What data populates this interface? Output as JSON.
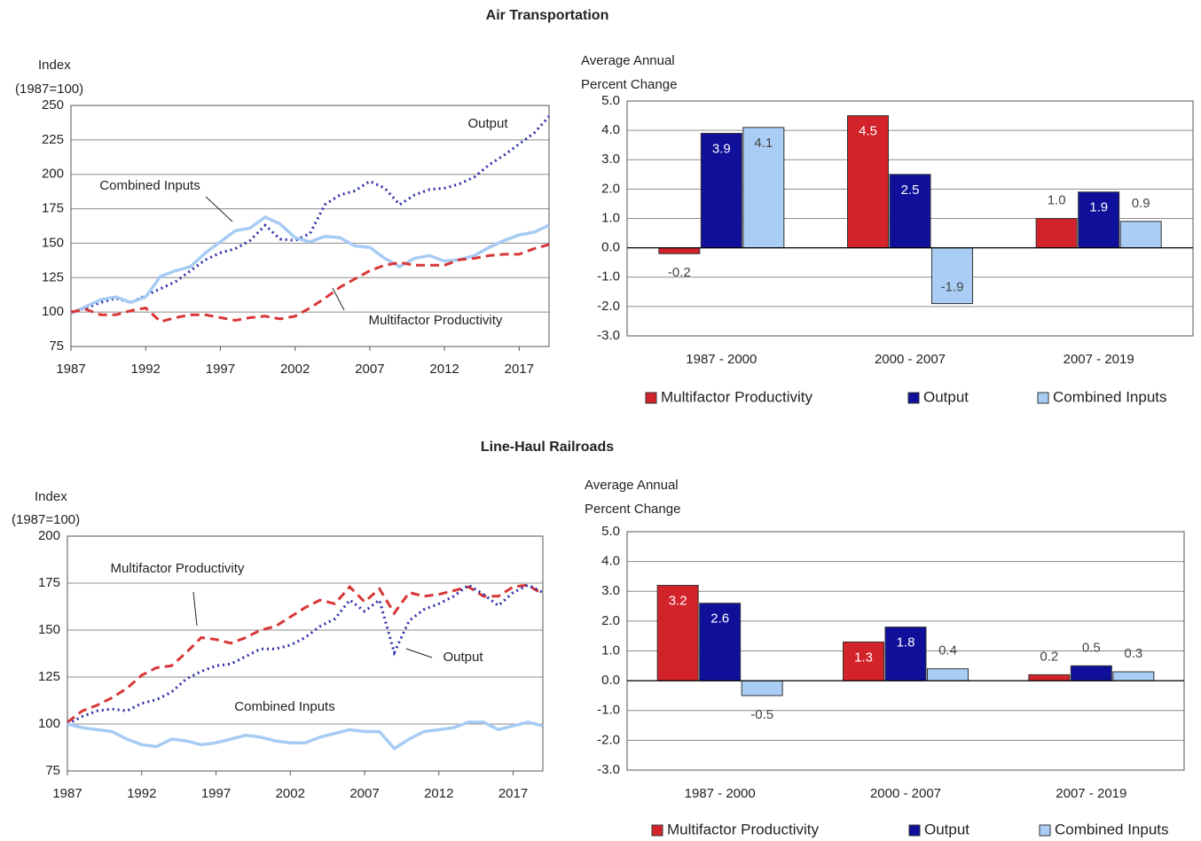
{
  "chart_data": [
    {
      "type": "line",
      "title": "Air Transportation",
      "ylabel": [
        "Index",
        "(1987=100)"
      ],
      "x": [
        1987,
        1988,
        1989,
        1990,
        1991,
        1992,
        1993,
        1994,
        1995,
        1996,
        1997,
        1998,
        1999,
        2000,
        2001,
        2002,
        2003,
        2004,
        2005,
        2006,
        2007,
        2008,
        2009,
        2010,
        2011,
        2012,
        2013,
        2014,
        2015,
        2016,
        2017,
        2018,
        2019
      ],
      "xlim": [
        1987,
        2019
      ],
      "xticks": [
        1987,
        1992,
        1997,
        2002,
        2007,
        2012,
        2017
      ],
      "ylim": [
        75,
        250
      ],
      "yticks": [
        75,
        100,
        125,
        150,
        175,
        200,
        225,
        250
      ],
      "grid": true,
      "series": [
        {
          "name": "Output",
          "color": "#2a2aa8",
          "dash": "dotted",
          "values": [
            100,
            103,
            107,
            110,
            107,
            112,
            117,
            122,
            130,
            138,
            143,
            146,
            152,
            163,
            153,
            152,
            157,
            178,
            185,
            188,
            195,
            190,
            178,
            185,
            189,
            190,
            193,
            198,
            207,
            214,
            222,
            230,
            242
          ]
        },
        {
          "name": "Combined Inputs",
          "color": "#a6cbf4",
          "dash": "solid",
          "values": [
            99,
            104,
            109,
            111,
            107,
            111,
            126,
            130,
            133,
            143,
            151,
            159,
            161,
            169,
            164,
            154,
            151,
            155,
            154,
            148,
            147,
            139,
            133,
            139,
            141,
            137,
            138,
            141,
            147,
            152,
            156,
            158,
            163
          ]
        },
        {
          "name": "Multifactor Productivity",
          "color": "#d93636",
          "dash": "dashed",
          "values": [
            100,
            102,
            98,
            98,
            101,
            103,
            93,
            96,
            98,
            98,
            96,
            94,
            96,
            97,
            95,
            97,
            103,
            110,
            118,
            124,
            130,
            134,
            136,
            134,
            134,
            134,
            138,
            139,
            141,
            142,
            142,
            146,
            149
          ]
        }
      ]
    },
    {
      "type": "bar",
      "ylabel": [
        "Average Annual",
        "Percent Change"
      ],
      "categories": [
        "1987 - 2000",
        "2000 - 2007",
        "2007 - 2019"
      ],
      "ylim": [
        -3,
        5
      ],
      "yticks": [
        {
          "value": -3,
          "label": "-3.0"
        },
        {
          "value": -2,
          "label": "-2.0"
        },
        {
          "value": -1,
          "label": "-1.0"
        },
        {
          "value": 0,
          "label": "0.0"
        },
        {
          "value": 1,
          "label": "1.0"
        },
        {
          "value": 2,
          "label": "2.0"
        },
        {
          "value": 3,
          "label": "3.0"
        },
        {
          "value": 4,
          "label": "4.0"
        },
        {
          "value": 5,
          "label": "5.0"
        }
      ],
      "grid": true,
      "series": [
        {
          "name": "Multifactor Productivity",
          "color": "#d2232a",
          "values": [
            -0.2,
            4.5,
            1.0
          ],
          "value_labels": [
            "-0.2",
            "4.5",
            "1.0"
          ]
        },
        {
          "name": "Output",
          "color": "#0f0f9a",
          "values": [
            3.9,
            2.5,
            1.9
          ],
          "value_labels": [
            "3.9",
            "2.5",
            "1.9"
          ]
        },
        {
          "name": "Combined Inputs",
          "color": "#a9cdf5",
          "values": [
            4.1,
            -1.9,
            0.9
          ],
          "value_labels": [
            "4.1",
            "-1.9",
            "0.9"
          ]
        }
      ]
    },
    {
      "type": "line",
      "title": "Line-Haul Railroads",
      "ylabel": [
        "Index",
        "(1987=100)"
      ],
      "x": [
        1987,
        1988,
        1989,
        1990,
        1991,
        1992,
        1993,
        1994,
        1995,
        1996,
        1997,
        1998,
        1999,
        2000,
        2001,
        2002,
        2003,
        2004,
        2005,
        2006,
        2007,
        2008,
        2009,
        2010,
        2011,
        2012,
        2013,
        2014,
        2015,
        2016,
        2017,
        2018,
        2019
      ],
      "xlim": [
        1987,
        2019
      ],
      "xticks": [
        1987,
        1992,
        1997,
        2002,
        2007,
        2012,
        2017
      ],
      "ylim": [
        75,
        200
      ],
      "yticks": [
        75,
        100,
        125,
        150,
        175,
        200
      ],
      "grid": true,
      "series": [
        {
          "name": "Multifactor Productivity",
          "color": "#d93636",
          "dash": "dashed",
          "values": [
            101,
            107,
            110,
            114,
            119,
            126,
            130,
            131,
            138,
            146,
            145,
            143,
            146,
            150,
            152,
            157,
            162,
            166,
            164,
            173,
            165,
            172,
            159,
            170,
            168,
            169,
            171,
            173,
            168,
            168,
            173,
            174,
            169
          ]
        },
        {
          "name": "Output",
          "color": "#2a2aa8",
          "dash": "dotted",
          "values": [
            100,
            104,
            107,
            108,
            107,
            111,
            113,
            117,
            124,
            128,
            131,
            132,
            136,
            140,
            140,
            142,
            146,
            152,
            156,
            166,
            160,
            166,
            138,
            155,
            161,
            164,
            168,
            174,
            169,
            163,
            170,
            174,
            170
          ]
        },
        {
          "name": "Combined Inputs",
          "color": "#a6cbf4",
          "dash": "solid",
          "values": [
            100,
            98,
            97,
            96,
            92,
            89,
            88,
            92,
            91,
            89,
            90,
            92,
            94,
            93,
            91,
            90,
            90,
            93,
            95,
            97,
            96,
            96,
            87,
            92,
            96,
            97,
            98,
            101,
            101,
            97,
            99,
            101,
            99
          ]
        }
      ]
    },
    {
      "type": "bar",
      "ylabel": [
        "Average Annual",
        "Percent Change"
      ],
      "categories": [
        "1987 - 2000",
        "2000 - 2007",
        "2007 - 2019"
      ],
      "ylim": [
        -3,
        5
      ],
      "yticks": [
        {
          "value": -3,
          "label": "-3.0"
        },
        {
          "value": -2,
          "label": "-2.0"
        },
        {
          "value": -1,
          "label": "-1.0"
        },
        {
          "value": 0,
          "label": "0.0"
        },
        {
          "value": 1,
          "label": "1.0"
        },
        {
          "value": 2,
          "label": "2.0"
        },
        {
          "value": 3,
          "label": "3.0"
        },
        {
          "value": 4,
          "label": "4.0"
        },
        {
          "value": 5,
          "label": "5.0"
        }
      ],
      "grid": true,
      "series": [
        {
          "name": "Multifactor Productivity",
          "color": "#d2232a",
          "values": [
            3.2,
            1.3,
            0.2
          ],
          "value_labels": [
            "3.2",
            "1.3",
            "0.2"
          ]
        },
        {
          "name": "Output",
          "color": "#0f0f9a",
          "values": [
            2.6,
            1.8,
            0.5
          ],
          "value_labels": [
            "2.6",
            "1.8",
            "0.5"
          ]
        },
        {
          "name": "Combined Inputs",
          "color": "#a9cdf5",
          "values": [
            -0.5,
            0.4,
            0.3
          ],
          "value_labels": [
            "-0.5",
            "0.4",
            "0.3"
          ]
        }
      ]
    }
  ]
}
